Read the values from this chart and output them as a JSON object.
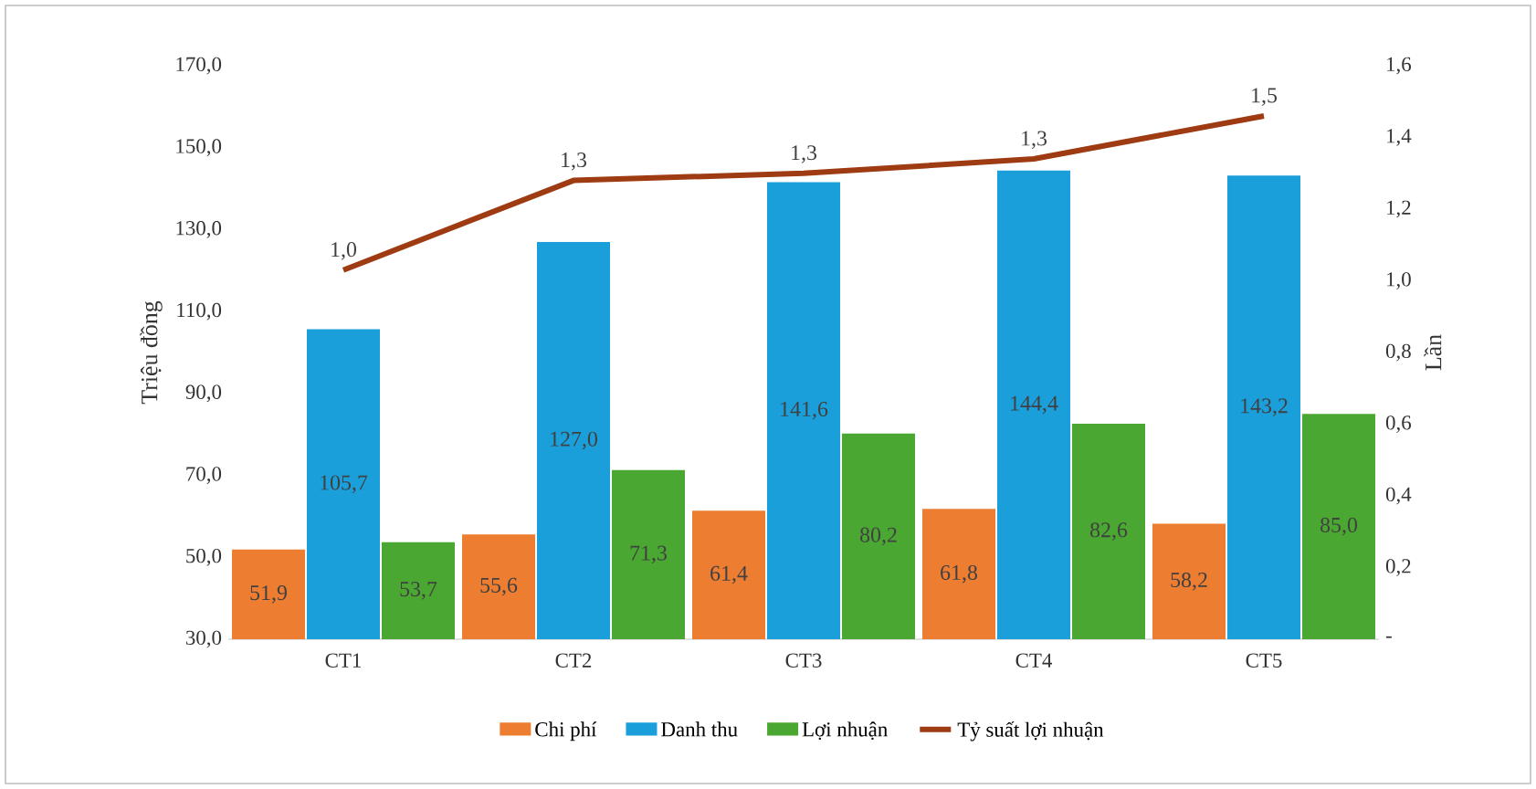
{
  "chart_data": {
    "type": "bar",
    "ylabel": "Triệu đồng",
    "y2label": "Lần",
    "categories": [
      "CT1",
      "CT2",
      "CT3",
      "CT4",
      "CT5"
    ],
    "series": [
      {
        "name": "Chi phí",
        "color": "#ed7d31",
        "values": [
          51.9,
          55.6,
          61.4,
          61.8,
          58.2
        ],
        "value_labels": [
          "51,9",
          "55,6",
          "61,4",
          "61,8",
          "58,2"
        ]
      },
      {
        "name": "Danh thu",
        "color": "#1a9fdb",
        "values": [
          105.7,
          127.0,
          141.6,
          144.4,
          143.2
        ],
        "value_labels": [
          "105,7",
          "127,0",
          "141,6",
          "144,4",
          "143,2"
        ]
      },
      {
        "name": "Lợi nhuận",
        "color": "#4aa832",
        "values": [
          53.7,
          71.3,
          80.2,
          82.6,
          85.0
        ],
        "value_labels": [
          "53,7",
          "71,3",
          "80,2",
          "82,6",
          "85,0"
        ]
      },
      {
        "name": "Tỷ suất lợi nhuận",
        "type": "line",
        "axis": "y2",
        "color": "#9e3b12",
        "values": [
          1.03,
          1.28,
          1.3,
          1.34,
          1.46
        ],
        "value_labels": [
          "1,0",
          "1,3",
          "1,3",
          "1,3",
          "1,5"
        ]
      }
    ],
    "ylim": [
      30,
      170
    ],
    "yticks": [
      {
        "value": 30,
        "label": "30,0"
      },
      {
        "value": 50,
        "label": "50,0"
      },
      {
        "value": 70,
        "label": "70,0"
      },
      {
        "value": 90,
        "label": "90,0"
      },
      {
        "value": 110,
        "label": "110,0"
      },
      {
        "value": 130,
        "label": "130,0"
      },
      {
        "value": 150,
        "label": "150,0"
      },
      {
        "value": 170,
        "label": "170,0"
      }
    ],
    "y2lim": [
      0,
      1.6
    ],
    "y2ticks": [
      {
        "value": 0,
        "label": "-"
      },
      {
        "value": 0.2,
        "label": "0,2"
      },
      {
        "value": 0.4,
        "label": "0,4"
      },
      {
        "value": 0.6,
        "label": "0,6"
      },
      {
        "value": 0.8,
        "label": "0,8"
      },
      {
        "value": 1.0,
        "label": "1,0"
      },
      {
        "value": 1.2,
        "label": "1,2"
      },
      {
        "value": 1.4,
        "label": "1,4"
      },
      {
        "value": 1.6,
        "label": "1,6"
      }
    ],
    "legend": "bottom"
  }
}
